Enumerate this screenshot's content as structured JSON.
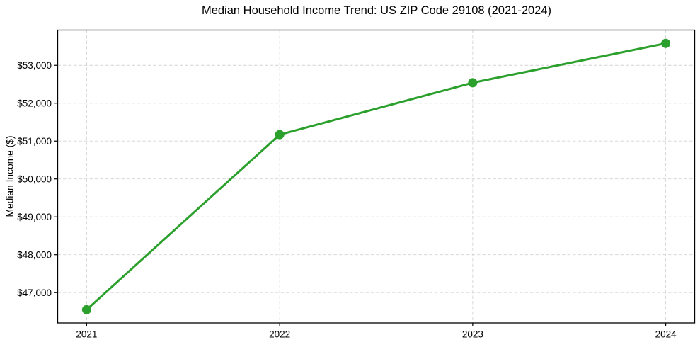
{
  "chart_data": {
    "type": "line",
    "title": "Median Household Income Trend: US ZIP Code 29108 (2021-2024)",
    "xlabel": "",
    "ylabel": "Median Income ($)",
    "categories": [
      "2021",
      "2022",
      "2023",
      "2024"
    ],
    "values": [
      46550,
      51170,
      52540,
      53580
    ],
    "series": [
      {
        "name": "Median Household Income",
        "values": [
          46550,
          51170,
          52540,
          53580
        ]
      }
    ],
    "ylim": [
      46200,
      53930
    ],
    "x_margin_frac": 0.05,
    "yticks": [
      47000,
      48000,
      49000,
      50000,
      51000,
      52000,
      53000
    ],
    "ytick_labels": [
      "$47,000",
      "$48,000",
      "$49,000",
      "$50,000",
      "$51,000",
      "$52,000",
      "$53,000"
    ],
    "grid": "dashed",
    "grid_axes": "both",
    "legend": "none",
    "marker": "circle",
    "colors": {
      "line": "#2ca02c",
      "marker": "#2ca02c",
      "grid": "#d4d4d4",
      "axis": "#000000",
      "text": "#000000"
    }
  }
}
